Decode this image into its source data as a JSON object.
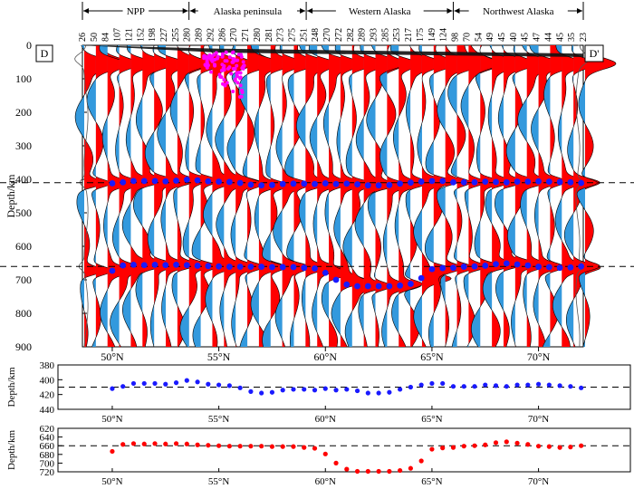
{
  "chart_data": [
    {
      "id": "cross-section",
      "type": "waveform-section",
      "profile_labels": {
        "start": "D",
        "end": "D'"
      },
      "regions": [
        {
          "name": "NPP",
          "lat_start": 48.6,
          "lat_end": 53.6
        },
        {
          "name": "Alaska peninsula",
          "lat_start": 53.6,
          "lat_end": 59.1
        },
        {
          "name": "Western Alaska",
          "lat_start": 59.1,
          "lat_end": 66.0
        },
        {
          "name": "Northwest Alaska",
          "lat_start": 66.0,
          "lat_end": 72.1
        }
      ],
      "trace_counts": [
        26,
        50,
        84,
        107,
        121,
        152,
        198,
        227,
        255,
        280,
        289,
        292,
        286,
        270,
        271,
        280,
        281,
        273,
        275,
        251,
        248,
        270,
        272,
        282,
        289,
        293,
        285,
        253,
        217,
        175,
        149,
        124,
        98,
        70,
        54,
        49,
        45,
        40,
        45,
        47,
        44,
        45,
        35,
        23
      ],
      "trace_lat_start": 48.6,
      "trace_lat_end": 72.1,
      "ylabel": "Depth/km",
      "yticks": [
        0,
        100,
        200,
        300,
        400,
        500,
        600,
        700,
        800,
        900
      ],
      "ylim": [
        0,
        900
      ],
      "xticks": [
        "50°N",
        "55°N",
        "60°N",
        "65°N",
        "70°N"
      ],
      "xtick_values": [
        50,
        55,
        60,
        65,
        70
      ],
      "reference_depths": [
        410,
        660
      ],
      "positive_color": "#ff0000",
      "negative_color": "#3399dd",
      "d410_color": "#1a1aff",
      "d660_color": "#ff0000",
      "seismicity_color": "#ff00ff"
    },
    {
      "id": "d410-panel",
      "type": "scatter",
      "ylabel": "Depth/km",
      "yticks": [
        380,
        400,
        420,
        440
      ],
      "ylim": [
        440,
        380
      ],
      "reference": 410,
      "xticks": [
        "50°N",
        "55°N",
        "60°N",
        "65°N",
        "70°N"
      ],
      "x": [
        50.0,
        50.5,
        51.0,
        51.5,
        52.0,
        52.5,
        53.0,
        53.5,
        54.0,
        54.5,
        55.0,
        55.5,
        56.0,
        56.5,
        57.0,
        57.5,
        58.0,
        58.5,
        59.0,
        59.5,
        60.0,
        60.5,
        61.0,
        61.5,
        62.0,
        62.5,
        63.0,
        63.5,
        64.0,
        64.5,
        65.0,
        65.5,
        66.0,
        66.5,
        67.0,
        67.5,
        68.0,
        68.5,
        69.0,
        69.5,
        70.0,
        70.5,
        71.0,
        71.5,
        72.0
      ],
      "values": [
        412,
        409,
        405,
        405,
        405,
        406,
        404,
        401,
        403,
        406,
        407,
        408,
        411,
        416,
        418,
        417,
        414,
        413,
        413,
        414,
        412,
        414,
        413,
        415,
        418,
        418,
        417,
        413,
        410,
        407,
        405,
        405,
        409,
        409,
        409,
        407,
        408,
        409,
        407,
        407,
        406,
        407,
        408,
        409,
        411
      ],
      "color": "#1a1aff"
    },
    {
      "id": "d660-panel",
      "type": "scatter",
      "ylabel": "Depth/km",
      "yticks": [
        620,
        640,
        660,
        680,
        700,
        720
      ],
      "ylim": [
        720,
        620
      ],
      "reference": 660,
      "xticks": [
        "50°N",
        "55°N",
        "60°N",
        "65°N",
        "70°N"
      ],
      "x": [
        50.0,
        50.5,
        51.0,
        51.5,
        52.0,
        52.5,
        53.0,
        53.5,
        54.0,
        54.5,
        55.0,
        55.5,
        56.0,
        56.5,
        57.0,
        57.5,
        58.0,
        58.5,
        59.0,
        59.5,
        60.0,
        60.5,
        61.0,
        61.5,
        62.0,
        62.5,
        63.0,
        63.5,
        64.0,
        64.5,
        65.0,
        65.5,
        66.0,
        66.5,
        67.0,
        67.5,
        68.0,
        68.5,
        69.0,
        69.5,
        70.0,
        70.5,
        71.0,
        71.5,
        72.0
      ],
      "values": [
        673,
        657,
        655,
        656,
        655,
        656,
        655,
        656,
        658,
        659,
        660,
        661,
        661,
        661,
        661,
        662,
        662,
        662,
        664,
        666,
        679,
        700,
        714,
        719,
        719,
        719,
        719,
        717,
        712,
        695,
        668,
        665,
        664,
        661,
        660,
        658,
        653,
        651,
        654,
        657,
        661,
        662,
        664,
        663,
        660
      ],
      "color": "#ff0000"
    }
  ]
}
